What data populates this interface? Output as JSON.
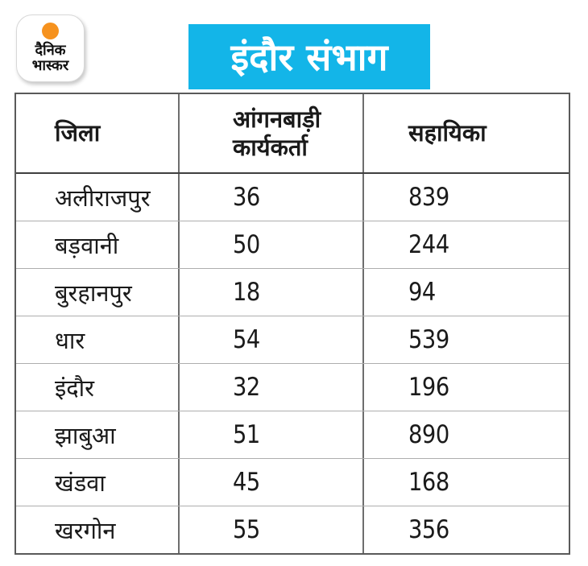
{
  "brand": {
    "name_line1": "दैनिक",
    "name_line2": "भास्कर"
  },
  "banner": {
    "title": "इंदौर संभाग"
  },
  "table": {
    "headers": {
      "district": "जिला",
      "workers": "आंगनबाड़ी कार्यकर्ता",
      "helpers": "सहायिका"
    },
    "rows": [
      {
        "district": "अलीराजपुर",
        "workers": "36",
        "helpers": "839"
      },
      {
        "district": "बड़वानी",
        "workers": "50",
        "helpers": "244"
      },
      {
        "district": "बुरहानपुर",
        "workers": "18",
        "helpers": "94"
      },
      {
        "district": "धार",
        "workers": "54",
        "helpers": "539"
      },
      {
        "district": "इंदौर",
        "workers": "32",
        "helpers": "196"
      },
      {
        "district": "झाबुआ",
        "workers": "51",
        "helpers": "890"
      },
      {
        "district": "खंडवा",
        "workers": "45",
        "helpers": "168"
      },
      {
        "district": "खरगोन",
        "workers": "55",
        "helpers": "356"
      }
    ]
  },
  "chart_data": {
    "type": "table",
    "title": "इंदौर संभाग",
    "columns": [
      "जिला",
      "आंगनबाड़ी कार्यकर्ता",
      "सहायिका"
    ],
    "rows": [
      [
        "अलीराजपुर",
        36,
        839
      ],
      [
        "बड़वानी",
        50,
        244
      ],
      [
        "बुरहानपुर",
        18,
        94
      ],
      [
        "धार",
        54,
        539
      ],
      [
        "इंदौर",
        32,
        196
      ],
      [
        "झाबुआ",
        51,
        890
      ],
      [
        "खंडवा",
        45,
        168
      ],
      [
        "खरगोन",
        55,
        356
      ]
    ]
  },
  "colors": {
    "banner_bg": "#13b5e8",
    "logo_orange": "#f6921e",
    "border_dark": "#5a5a5a",
    "border_light": "#aeaeae",
    "text": "#1a1a1a"
  }
}
